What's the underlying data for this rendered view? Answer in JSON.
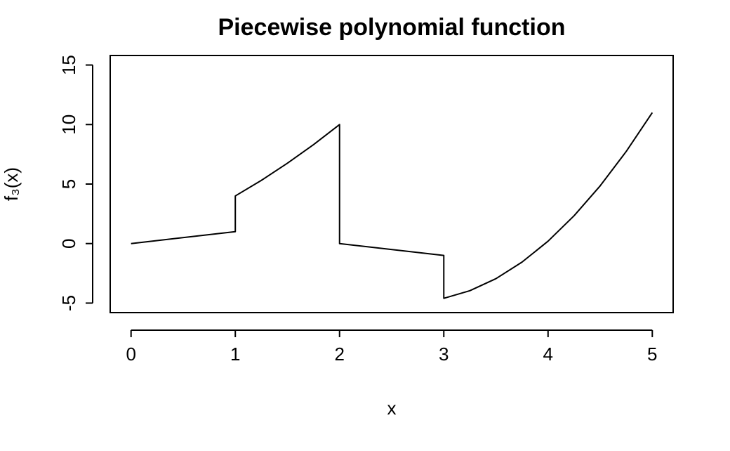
{
  "chart_data": {
    "type": "line",
    "title": "Piecewise polynomial function",
    "x_label": "x",
    "y_label": "f₃(x)",
    "x": [
      0,
      1,
      1,
      1.25,
      1.5,
      1.75,
      2,
      2,
      3,
      3,
      3.25,
      3.5,
      3.75,
      4,
      4.25,
      4.5,
      4.75,
      5
    ],
    "values": [
      0,
      1,
      4,
      5.31,
      6.75,
      8.31,
      10,
      0,
      -1,
      -4.6,
      -3.96,
      -2.95,
      -1.56,
      0.2,
      2.34,
      4.85,
      7.74,
      11
    ],
    "color": "#000000",
    "xlim": [
      -0.2,
      5.2
    ],
    "xticks": [
      0,
      1,
      2,
      3,
      4,
      5
    ],
    "ylim": [
      -5.8,
      15.8
    ],
    "yticks": [
      -5,
      0,
      5,
      10,
      15
    ]
  }
}
